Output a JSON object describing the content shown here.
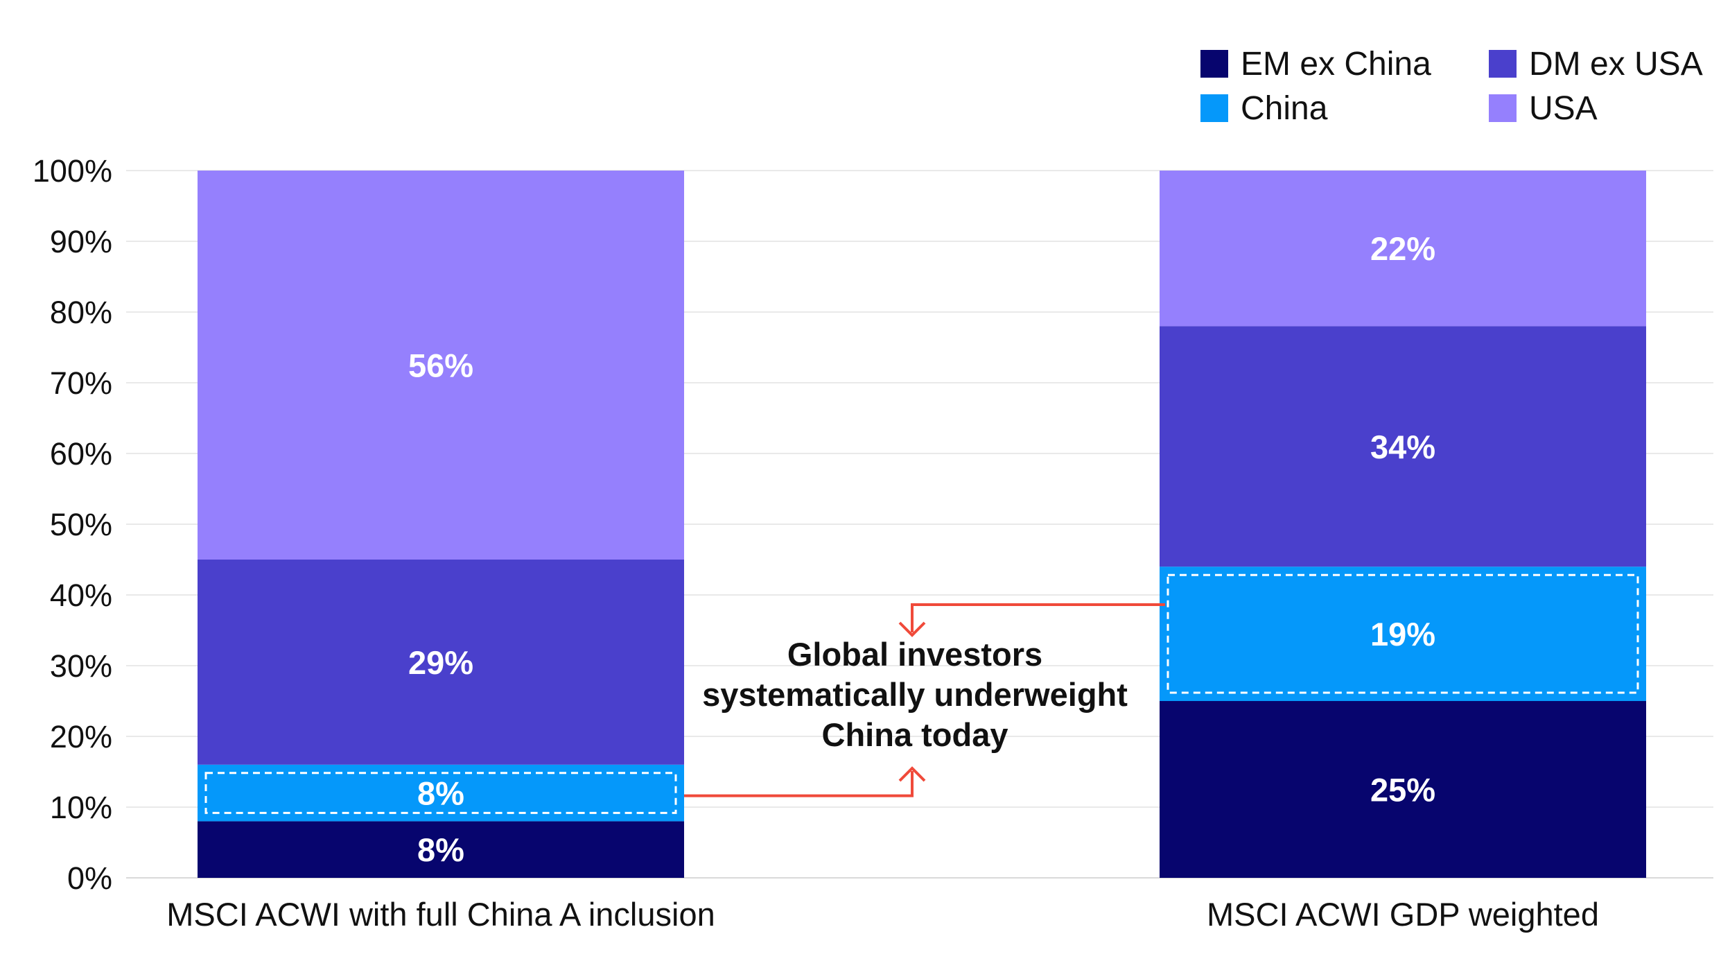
{
  "chart_data": {
    "type": "bar",
    "stacked": true,
    "categories": [
      "MSCI ACWI with full China A inclusion",
      "MSCI ACWI GDP weighted"
    ],
    "series": [
      {
        "name": "EM ex China",
        "values": [
          8,
          25
        ],
        "labels": [
          "8%",
          "25%"
        ],
        "color": "#07056e"
      },
      {
        "name": "China",
        "values": [
          8,
          19
        ],
        "labels": [
          "8%",
          "19%"
        ],
        "color": "#0598fa"
      },
      {
        "name": "DM ex USA",
        "values": [
          29,
          34
        ],
        "labels": [
          "29%",
          "34%"
        ],
        "color": "#4a40cc"
      },
      {
        "name": "USA",
        "values": [
          56,
          22
        ],
        "labels": [
          "56%",
          "22%"
        ],
        "color": "#9580fd"
      }
    ],
    "ylim": [
      0,
      100
    ],
    "y_ticks": [
      "0%",
      "10%",
      "20%",
      "30%",
      "40%",
      "50%",
      "60%",
      "70%",
      "80%",
      "90%",
      "100%"
    ],
    "grid": true,
    "legend_position": "top-right",
    "legend_order": [
      "EM ex China",
      "DM ex USA",
      "China",
      "USA"
    ],
    "highlight_series": "China",
    "annotation": {
      "lines": [
        "Global investors",
        "systematically underweight",
        "China today"
      ],
      "arrow_color": "#f04a3a"
    }
  }
}
